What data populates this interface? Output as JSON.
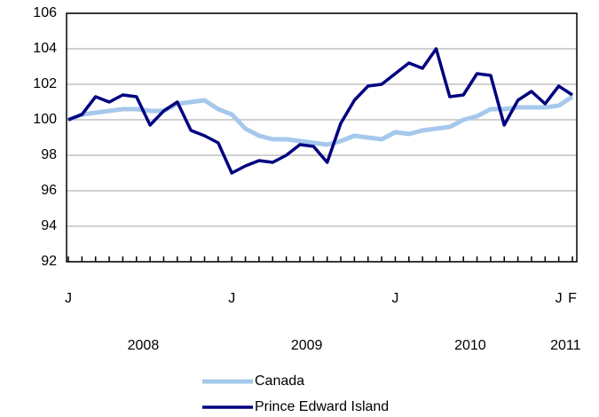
{
  "chart_data": {
    "type": "line",
    "categories": [
      "J",
      null,
      null,
      null,
      null,
      null,
      null,
      null,
      null,
      null,
      null,
      null,
      "J",
      null,
      null,
      null,
      null,
      null,
      null,
      null,
      null,
      null,
      null,
      null,
      "J",
      null,
      null,
      null,
      null,
      null,
      null,
      null,
      null,
      null,
      null,
      null,
      "J",
      "F"
    ],
    "year_labels": [
      "2008",
      "2009",
      "2010",
      "2011"
    ],
    "series": [
      {
        "name": "Canada",
        "color": "#a6c8ec",
        "values": [
          100.0,
          100.3,
          100.4,
          100.5,
          100.6,
          100.6,
          100.5,
          100.5,
          100.9,
          101.0,
          101.1,
          100.6,
          100.3,
          99.5,
          99.1,
          98.9,
          98.9,
          98.8,
          98.7,
          98.6,
          98.8,
          99.1,
          99.0,
          98.9,
          99.3,
          99.2,
          99.4,
          99.5,
          99.6,
          100.0,
          100.2,
          100.6,
          100.6,
          100.7,
          100.7,
          100.7,
          100.8,
          101.3
        ]
      },
      {
        "name": "Prince Edward Island",
        "color": "#000080",
        "values": [
          100.0,
          100.3,
          101.3,
          101.0,
          101.4,
          101.3,
          99.7,
          100.5,
          101.0,
          99.4,
          99.1,
          98.7,
          97.0,
          97.4,
          97.7,
          97.6,
          98.0,
          98.6,
          98.5,
          97.6,
          99.8,
          101.1,
          101.9,
          102.0,
          102.6,
          103.2,
          102.9,
          104.0,
          101.3,
          101.4,
          102.6,
          102.5,
          99.7,
          101.1,
          101.6,
          100.9,
          101.9,
          101.4
        ]
      }
    ],
    "ylim": [
      92,
      106
    ],
    "yticks": [
      92,
      94,
      96,
      98,
      100,
      102,
      104,
      106
    ],
    "grid": true
  }
}
